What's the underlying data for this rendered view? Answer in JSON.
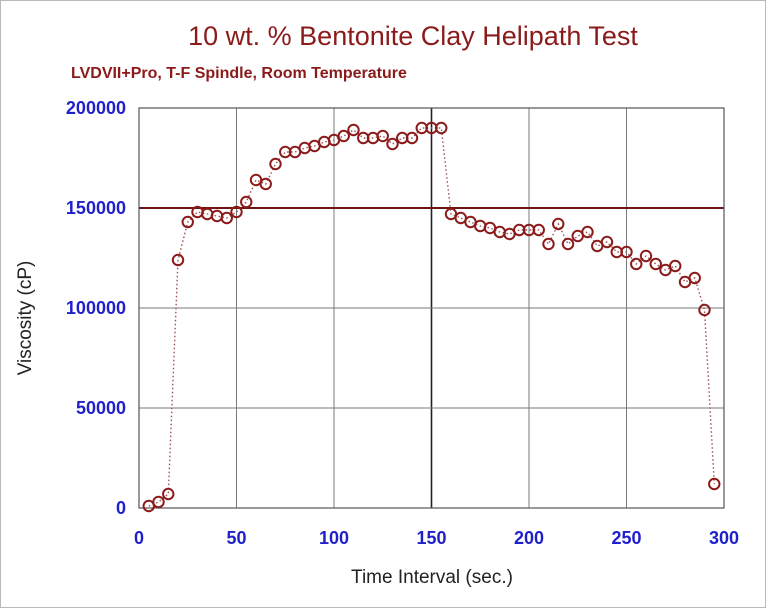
{
  "chart_data": {
    "type": "scatter",
    "title": "10 wt. % Bentonite Clay Helipath Test",
    "subtitle": "LVDVII+Pro, T-F Spindle, Room Temperature",
    "xlabel": "Time Interval (sec.)",
    "ylabel": "Viscosity (cP)",
    "xlim": [
      0,
      300
    ],
    "ylim": [
      0,
      200000
    ],
    "xticks": [
      0,
      50,
      100,
      150,
      200,
      250,
      300
    ],
    "yticks": [
      0,
      50000,
      100000,
      150000,
      200000
    ],
    "xtick_labels": [
      "0",
      "50",
      "100",
      "150",
      "200",
      "250",
      "300"
    ],
    "ytick_labels": [
      "0",
      "50000",
      "100000",
      "150000",
      "200000"
    ],
    "grid": true,
    "reference_lines": [
      150000
    ],
    "marker_style": "open circle with dotted connecting line",
    "colors": {
      "series": "#8b1a1a",
      "ticks": "#1f1fcc",
      "grid": "#7a7a7a",
      "reference": "#6b1414",
      "title": "#8b1a1a"
    },
    "series": [
      {
        "x": [
          5,
          10,
          15,
          20,
          25,
          30,
          35,
          40,
          45,
          50,
          55,
          60,
          65,
          70,
          75,
          80,
          85,
          90,
          95,
          100,
          105,
          110,
          115,
          120,
          125,
          130,
          135,
          140,
          145,
          150,
          155,
          160,
          165,
          170,
          175,
          180,
          185,
          190,
          195,
          200,
          205,
          210,
          215,
          220,
          225,
          230,
          235,
          240,
          245,
          250,
          255,
          260,
          265,
          270,
          275,
          280,
          285,
          290,
          295
        ],
        "y": [
          1000,
          3000,
          7000,
          124000,
          143000,
          148000,
          147000,
          146000,
          145000,
          148000,
          153000,
          164000,
          162000,
          172000,
          178000,
          178000,
          180000,
          181000,
          183000,
          184000,
          186000,
          189000,
          185000,
          185000,
          186000,
          182000,
          185000,
          185000,
          190000,
          190000,
          190000,
          147000,
          145000,
          143000,
          141000,
          140000,
          138000,
          137000,
          139000,
          139000,
          139000,
          132000,
          142000,
          132000,
          136000,
          138000,
          131000,
          133000,
          128000,
          128000,
          122000,
          126000,
          122000,
          119000,
          121000,
          113000,
          115000,
          99000,
          12000
        ]
      }
    ]
  }
}
